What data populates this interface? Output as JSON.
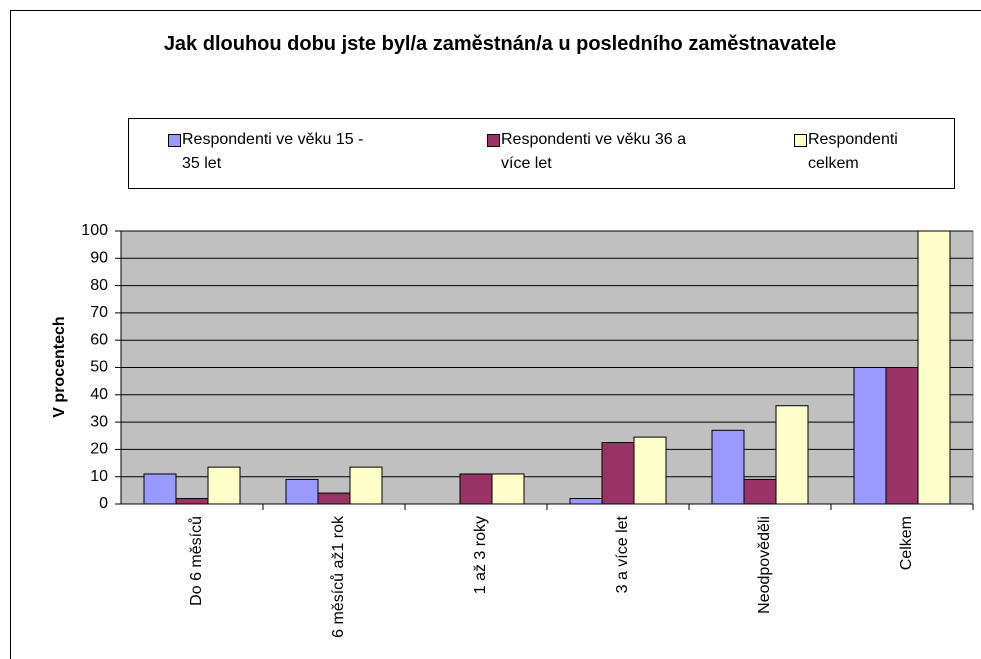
{
  "chart_data": {
    "type": "bar",
    "title": "Jak dlouhou dobu jste byl/a zaměstnán/a u posledního zaměstnavatele",
    "y_label": "V procentech",
    "categories": [
      "Do 6 měsíců",
      "6 měsíců až1 rok",
      "1 až 3 roky",
      "3 a více let",
      "Neodpověděli",
      "Celkem"
    ],
    "series": [
      {
        "name": "Respondenti ve věku 15 - 35 let",
        "color": "#9999ff",
        "values": [
          11,
          9,
          0,
          2,
          27,
          50
        ]
      },
      {
        "name": "Respondenti ve věku 36 a více let",
        "color": "#993366",
        "values": [
          2,
          4,
          11,
          22.5,
          9,
          50
        ]
      },
      {
        "name": "Respondenti celkem",
        "color": "#ffffcc",
        "values": [
          13.5,
          13.5,
          11,
          24.5,
          36,
          100
        ]
      }
    ],
    "ylim": [
      0,
      100
    ],
    "yticks": [
      0,
      10,
      20,
      30,
      40,
      50,
      60,
      70,
      80,
      90,
      100
    ],
    "grid": true,
    "legend": "top"
  }
}
